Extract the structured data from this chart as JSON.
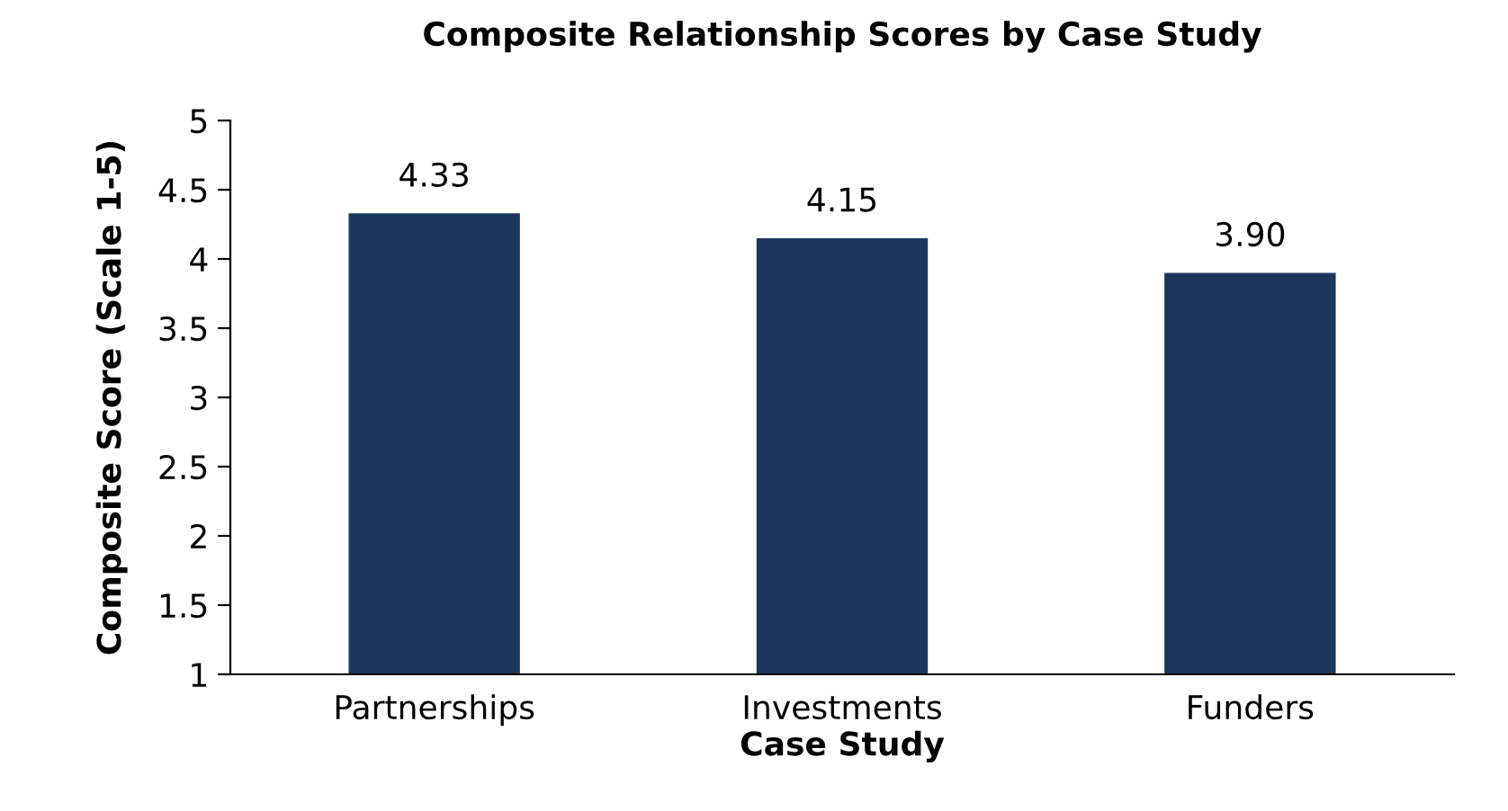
{
  "chart_data": {
    "type": "bar",
    "title": "Composite Relationship Scores by Case Study",
    "xlabel": "Case Study",
    "ylabel": "Composite Score (Scale 1-5)",
    "categories": [
      "Partnerships",
      "Investments",
      "Funders"
    ],
    "values": [
      4.33,
      4.15,
      3.9
    ],
    "value_labels": [
      "4.33",
      "4.15",
      "3.90"
    ],
    "color": "#1b365d",
    "ylim": [
      1,
      5
    ],
    "yticks": [
      1,
      1.5,
      2,
      2.5,
      3,
      3.5,
      4,
      4.5,
      5
    ],
    "grid": false,
    "legend": false
  }
}
